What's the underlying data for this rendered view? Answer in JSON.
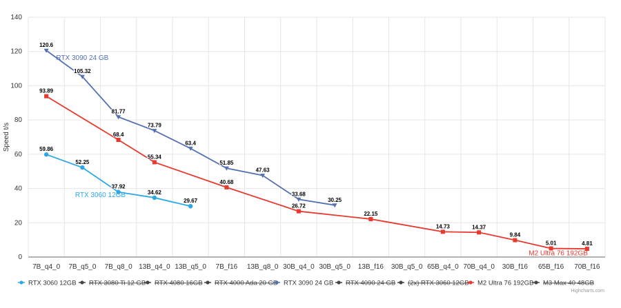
{
  "chart_data": {
    "type": "line",
    "ylabel": "Speed t/s",
    "xlabel": "",
    "ylim": [
      0,
      140
    ],
    "yticks": [
      0,
      20,
      40,
      60,
      80,
      100,
      120,
      140
    ],
    "grid": true,
    "legend_position": "bottom",
    "categories": [
      "7B_q4_0",
      "7B_q5_0",
      "7B_q8_0",
      "13B_q4_0",
      "13B_q5_0",
      "7B_f16",
      "13B_q8_0",
      "30B_q4_0",
      "30B_q5_0",
      "13B_f16",
      "30B_q5_0",
      "65B_q4_0",
      "70B_q4_0",
      "30B_f16",
      "65B_f16",
      "70B_f16"
    ],
    "series": [
      {
        "name": "RTX 3060 12GB",
        "color": "#2ca7e8",
        "visible": true,
        "marker": "circle",
        "label": "RTX 3060 12GB",
        "values": [
          59.86,
          52.25,
          37.92,
          34.62,
          29.67,
          null,
          null,
          null,
          null,
          null,
          null,
          null,
          null,
          null,
          null,
          null
        ]
      },
      {
        "name": "RTX 3080 Ti 12 GB",
        "visible": false
      },
      {
        "name": "RTX 4080 16GB",
        "visible": false
      },
      {
        "name": "RTX 4000 Ada 20 GB",
        "visible": false
      },
      {
        "name": "RTX 3090 24 GB",
        "color": "#5470b0",
        "visible": true,
        "marker": "triangle-down",
        "label": "RTX 3090 24 GB",
        "values": [
          120.6,
          105.32,
          81.77,
          73.79,
          63.4,
          51.85,
          47.63,
          33.68,
          30.25,
          null,
          null,
          null,
          null,
          null,
          null,
          null
        ]
      },
      {
        "name": "RTX 4090 24 GB",
        "visible": false
      },
      {
        "name": "(2x) RTX 3060 12GB",
        "visible": false
      },
      {
        "name": "M2 Ultra 76 192GB",
        "color": "#e8392f",
        "visible": true,
        "marker": "square",
        "label": "M2 Ultra 76 192GB",
        "values": [
          93.89,
          null,
          68.4,
          55.34,
          null,
          40.68,
          null,
          26.72,
          null,
          22.15,
          null,
          14.73,
          14.37,
          9.84,
          5.01,
          4.81
        ]
      },
      {
        "name": "M3 Max 40 48GB",
        "visible": false
      }
    ]
  },
  "credits": "Highcharts.com"
}
